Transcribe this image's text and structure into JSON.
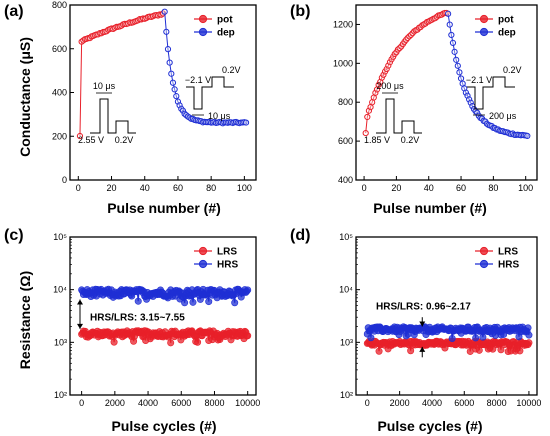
{
  "chart_data": [
    {
      "panel": "(a)",
      "type": "scatter",
      "xlabel": "Pulse number (#)",
      "ylabel": "Conductance (μS)",
      "xlim": [
        -5,
        107
      ],
      "ylim": [
        0,
        800
      ],
      "xticks": [
        "0",
        "20",
        "40",
        "60",
        "80",
        "100"
      ],
      "yticks": [
        "0",
        "200",
        "400",
        "600",
        "800"
      ],
      "legend": [
        {
          "label": "pot",
          "color": "#e8202a"
        },
        {
          "label": "dep",
          "color": "#1f2fd4"
        }
      ],
      "series": [
        {
          "name": "pot",
          "color": "#e8202a",
          "curve": "pot",
          "x_start": 1,
          "x_end": 51,
          "y_first": 200,
          "y_start": 630,
          "y_end": 760,
          "shape": 0.7
        },
        {
          "name": "dep",
          "color": "#1f2fd4",
          "curve": "dep",
          "x_start": 52,
          "x_end": 101,
          "y_start": 770,
          "y_end": 262,
          "shape": 10
        }
      ],
      "insets": [
        {
          "kind": "pot",
          "top_label": "10 μs",
          "amp_label": "2.55 V",
          "base_label": "0.2V"
        },
        {
          "kind": "dep",
          "neg_label": "−2.1 V",
          "pos_label": "0.2V",
          "width_label": "10 μs"
        }
      ]
    },
    {
      "panel": "(b)",
      "type": "scatter",
      "xlabel": "Pulse number (#)",
      "ylabel": "",
      "xlim": [
        -5,
        107
      ],
      "ylim": [
        400,
        1300
      ],
      "xticks": [
        "0",
        "20",
        "40",
        "60",
        "80",
        "100"
      ],
      "yticks": [
        "400",
        "600",
        "800",
        "1000",
        "1200"
      ],
      "legend": [
        {
          "label": "pot",
          "color": "#e8202a"
        },
        {
          "label": "dep",
          "color": "#1f2fd4"
        }
      ],
      "series": [
        {
          "name": "pot",
          "color": "#e8202a",
          "curve": "pot",
          "x_start": 1,
          "x_end": 51,
          "y_first": 640,
          "y_start": 700,
          "y_end": 1260,
          "shape": 2.2
        },
        {
          "name": "dep",
          "color": "#1f2fd4",
          "curve": "dep",
          "x_start": 52,
          "x_end": 101,
          "y_start": 1255,
          "y_end": 628,
          "shape": 4.5
        }
      ],
      "insets": [
        {
          "kind": "pot",
          "top_label": "200 μs",
          "amp_label": "1.85 V",
          "base_label": "0.2V"
        },
        {
          "kind": "dep",
          "neg_label": "−2.1 V",
          "pos_label": "0.2V",
          "width_label": "200 μs"
        }
      ]
    },
    {
      "panel": "(c)",
      "type": "scatter",
      "xlabel": "Pulse cycles (#)",
      "ylabel": "Resistance (Ω)",
      "yscale": "log",
      "xlim": [
        -700,
        10500
      ],
      "ylim": [
        100,
        100000
      ],
      "xticks": [
        "0",
        "2000",
        "4000",
        "6000",
        "8000",
        "10000"
      ],
      "yticks": [
        "10²",
        "10³",
        "10⁴",
        "10⁵"
      ],
      "legend": [
        {
          "label": "LRS",
          "color": "#e8202a"
        },
        {
          "label": "HRS",
          "color": "#1f2fd4"
        }
      ],
      "series": [
        {
          "name": "LRS",
          "color": "#e8202a",
          "curve": "band",
          "x_start": 0,
          "x_end": 10000,
          "y_center": 1450,
          "y_spread": 0.06
        },
        {
          "name": "HRS",
          "color": "#1f2fd4",
          "curve": "band",
          "x_start": 0,
          "x_end": 10000,
          "y_center": 8700,
          "y_spread": 0.07
        }
      ],
      "annotation": "HRS/LRS: 3.15~7.55"
    },
    {
      "panel": "(d)",
      "type": "scatter",
      "xlabel": "Pulse cycles (#)",
      "ylabel": "",
      "yscale": "log",
      "xlim": [
        -700,
        10500
      ],
      "ylim": [
        100,
        100000
      ],
      "xticks": [
        "0",
        "2000",
        "4000",
        "6000",
        "8000",
        "10000"
      ],
      "yticks": [
        "10²",
        "10³",
        "10⁴",
        "10⁵"
      ],
      "legend": [
        {
          "label": "LRS",
          "color": "#e8202a"
        },
        {
          "label": "HRS",
          "color": "#1f2fd4"
        }
      ],
      "series": [
        {
          "name": "LRS",
          "color": "#e8202a",
          "curve": "band",
          "x_start": 0,
          "x_end": 10000,
          "y_center": 960,
          "y_spread": 0.04
        },
        {
          "name": "HRS",
          "color": "#1f2fd4",
          "curve": "band",
          "x_start": 0,
          "x_end": 10000,
          "y_center": 1750,
          "y_spread": 0.05
        }
      ],
      "annotation": "HRS/LRS: 0.96~2.17"
    }
  ],
  "labels": {
    "a": "(a)",
    "b": "(b)",
    "c": "(c)",
    "d": "(d)",
    "conductance": "Conductance (μS)",
    "resistance": "Resistance (Ω)",
    "pulse_number": "Pulse number (#)",
    "pulse_cycles": "Pulse cycles (#)"
  }
}
